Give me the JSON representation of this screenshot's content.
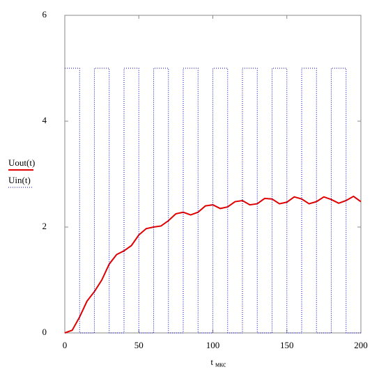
{
  "chart_data": {
    "type": "line",
    "x_label": "t",
    "x_label_sub": "мкс",
    "xlim": [
      0,
      200
    ],
    "xticks": [
      0,
      50,
      100,
      150,
      200
    ],
    "ylim": [
      0,
      6
    ],
    "yticks": [
      0,
      2,
      4,
      6
    ],
    "grid": false,
    "legend": "left",
    "series": [
      {
        "name": "Uout(t)",
        "color": "#e00000",
        "style": "solid",
        "x": [
          0,
          5,
          10,
          15,
          20,
          25,
          30,
          35,
          40,
          45,
          50,
          55,
          60,
          65,
          70,
          75,
          80,
          85,
          90,
          95,
          100,
          105,
          110,
          115,
          120,
          125,
          130,
          135,
          140,
          145,
          150,
          155,
          160,
          165,
          170,
          175,
          180,
          185,
          190,
          195,
          200
        ],
        "values": [
          0,
          0.05,
          0.3,
          0.6,
          0.78,
          1.0,
          1.3,
          1.48,
          1.55,
          1.65,
          1.85,
          1.97,
          2.0,
          2.02,
          2.12,
          2.25,
          2.28,
          2.23,
          2.28,
          2.4,
          2.42,
          2.35,
          2.38,
          2.48,
          2.5,
          2.42,
          2.44,
          2.54,
          2.53,
          2.44,
          2.47,
          2.57,
          2.53,
          2.44,
          2.48,
          2.57,
          2.52,
          2.45,
          2.5,
          2.58,
          2.48
        ]
      },
      {
        "name": "Uin(t)",
        "color": "#0000c8",
        "style": "dotted",
        "x": [
          0,
          10,
          10,
          20,
          20,
          30,
          30,
          40,
          40,
          50,
          50,
          60,
          60,
          70,
          70,
          80,
          80,
          90,
          90,
          100,
          100,
          110,
          110,
          120,
          120,
          130,
          130,
          140,
          140,
          150,
          150,
          160,
          160,
          170,
          170,
          180,
          180,
          190,
          190,
          200
        ],
        "values": [
          5,
          5,
          0,
          0,
          5,
          5,
          0,
          0,
          5,
          5,
          0,
          0,
          5,
          5,
          0,
          0,
          5,
          5,
          0,
          0,
          5,
          5,
          0,
          0,
          5,
          5,
          0,
          0,
          5,
          5,
          0,
          0,
          5,
          5,
          0,
          0,
          5,
          5,
          0,
          0
        ]
      }
    ]
  }
}
